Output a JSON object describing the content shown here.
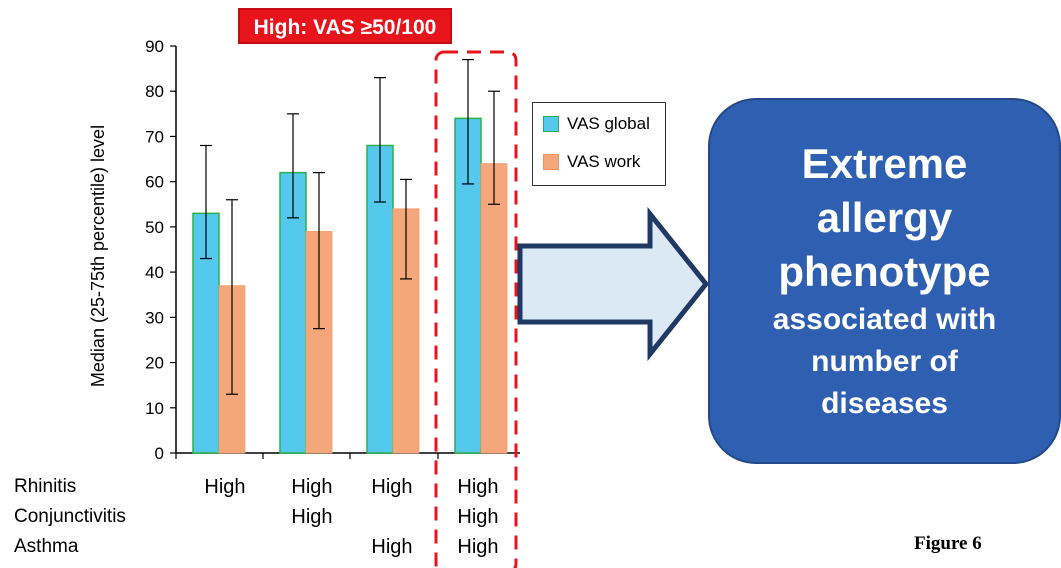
{
  "badge": "High: VAS ≥50/100",
  "chart_data": {
    "type": "bar",
    "ylabel": "Median (25-75th percentile) level",
    "ylim": [
      0,
      90
    ],
    "yticks": [
      0,
      10,
      20,
      30,
      40,
      50,
      60,
      70,
      80,
      90
    ],
    "groups": 4,
    "series": [
      {
        "name": "VAS global",
        "color": "#55c8ee",
        "values": [
          53,
          62,
          68,
          74
        ],
        "err_low": [
          43,
          52,
          55.5,
          59.5
        ],
        "err_high": [
          68,
          75,
          83,
          87
        ]
      },
      {
        "name": "VAS work",
        "color": "#f5a77c",
        "values": [
          37,
          49,
          54,
          64
        ],
        "err_low": [
          13,
          27.5,
          38.5,
          55
        ],
        "err_high": [
          56,
          62,
          60.5,
          80
        ]
      }
    ],
    "legend_position": "inside-right",
    "highlighted_group": 3
  },
  "conditions": {
    "rows": [
      {
        "label": "Rhinitis",
        "values": [
          "High",
          "High",
          "High",
          "High"
        ]
      },
      {
        "label": "Conjunctivitis",
        "values": [
          "",
          "High",
          "",
          "High"
        ]
      },
      {
        "label": "Asthma",
        "values": [
          "",
          "",
          "High",
          "High"
        ]
      }
    ]
  },
  "callout": {
    "line1": "Extreme",
    "line2": "allergy",
    "line3": "phenotype",
    "line4": "associated with",
    "line5": "number of",
    "line6": "diseases"
  },
  "figure_label": "Figure 6",
  "colors": {
    "badge": "#e8141b",
    "callout": "#2f5fb0",
    "arrow_fill": "#dbe9f4",
    "arrow_stroke": "#1f3864",
    "highlight_box": "#e8141b"
  }
}
